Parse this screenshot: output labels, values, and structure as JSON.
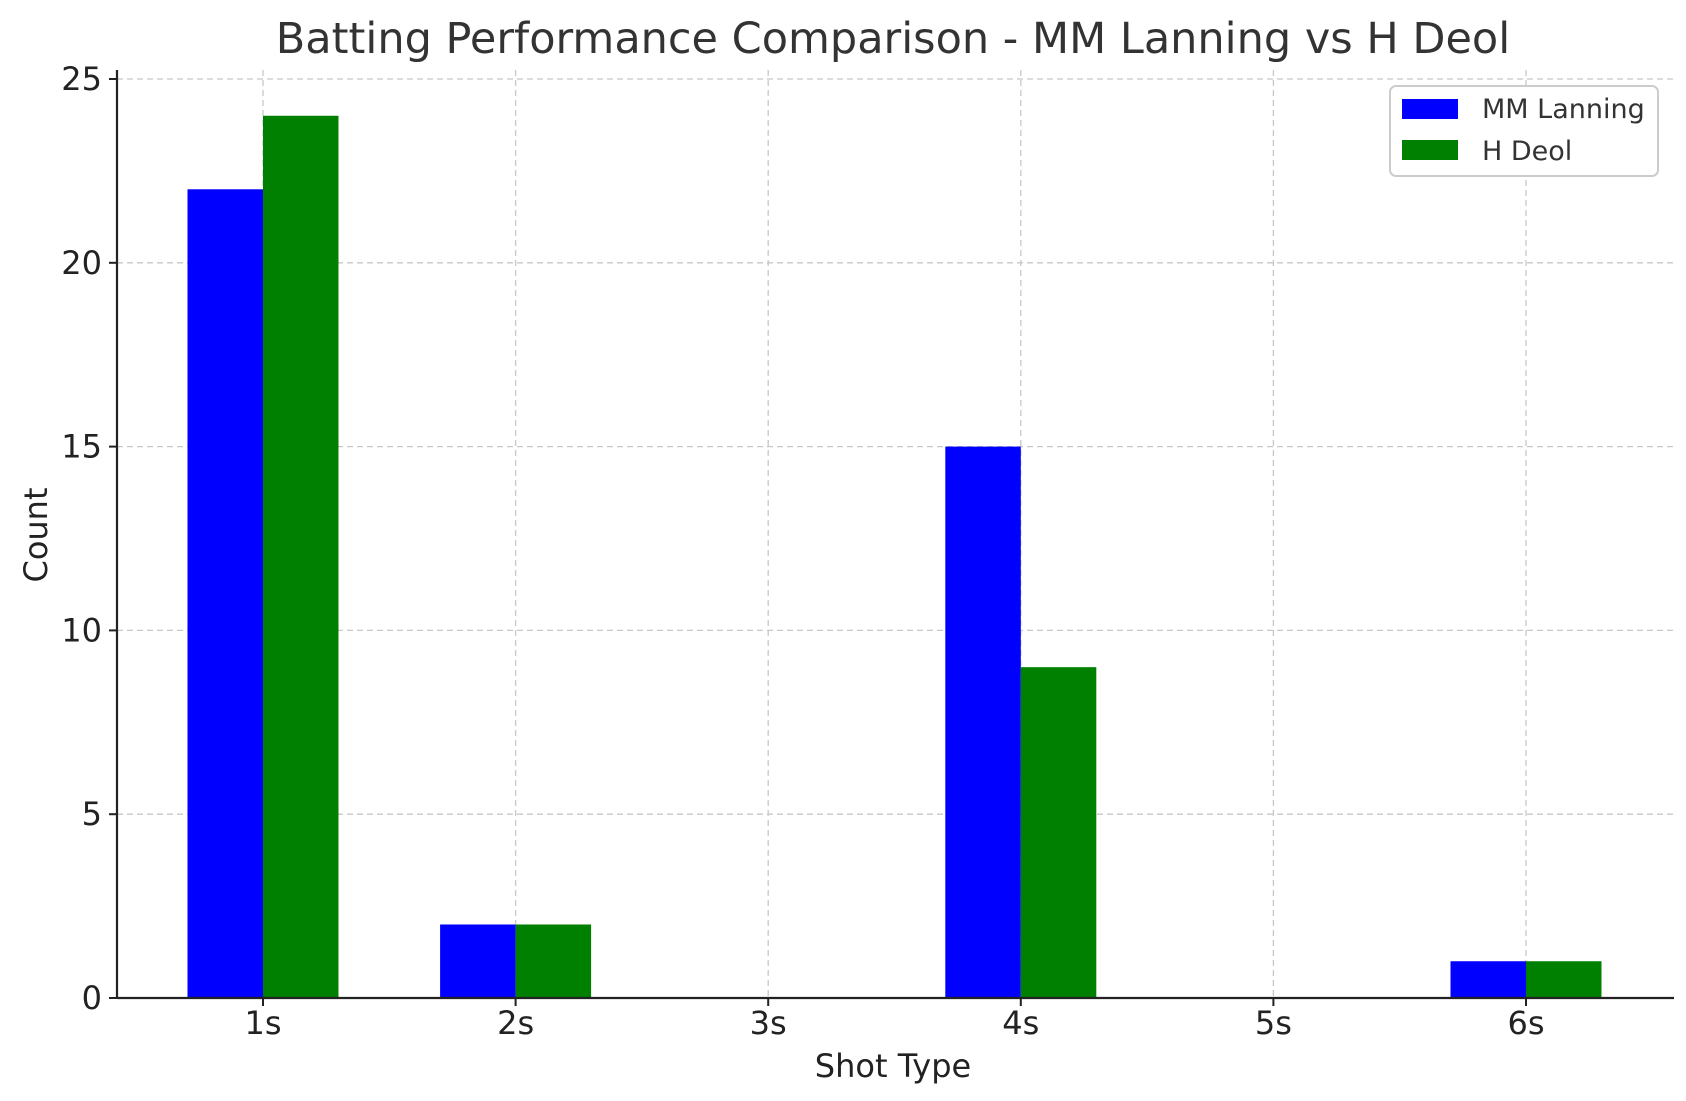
{
  "chart_data": {
    "type": "bar",
    "title": "Batting Performance Comparison - MM Lanning vs H Deol",
    "xlabel": "Shot Type",
    "ylabel": "Count",
    "categories": [
      "1s",
      "2s",
      "3s",
      "4s",
      "5s",
      "6s"
    ],
    "series": [
      {
        "name": "MM Lanning",
        "color": "#0000ff",
        "values": [
          22,
          2,
          0,
          15,
          0,
          1
        ]
      },
      {
        "name": "H Deol",
        "color": "#008000",
        "values": [
          24,
          2,
          0,
          9,
          0,
          1
        ]
      }
    ],
    "ylim": [
      0,
      25
    ],
    "yticks": [
      0,
      5,
      10,
      15,
      20,
      25
    ],
    "grid": true,
    "legend_position": "top-right"
  }
}
